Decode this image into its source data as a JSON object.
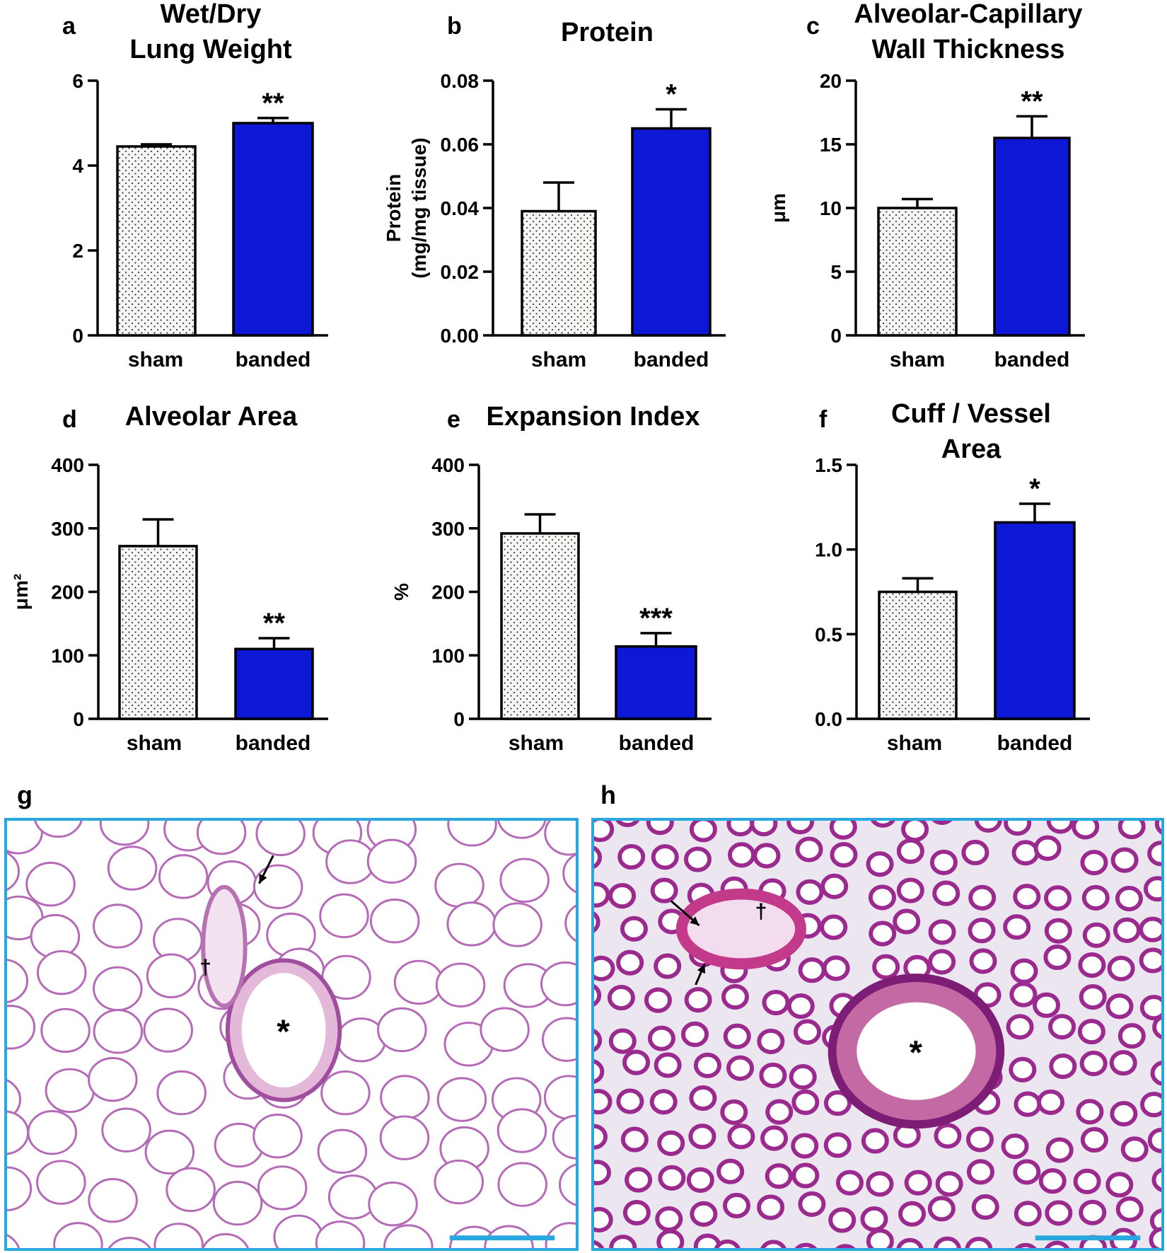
{
  "colors": {
    "banded": "#0d17d6",
    "sham_fill": "#f6f6f4",
    "frame": "#29a8e0",
    "scale_bar": "#29a8e0"
  },
  "chart_data": [
    {
      "id": "a",
      "panel_label": "a",
      "type": "bar",
      "title_lines": [
        "Wet/Dry",
        "Lung Weight"
      ],
      "ylabel_lines": [],
      "ylim": [
        0,
        6
      ],
      "yticks": [
        "0",
        "2",
        "4",
        "6"
      ],
      "ytick_values": [
        0,
        2,
        4,
        6
      ],
      "categories": [
        "sham",
        "banded"
      ],
      "values": [
        4.45,
        5.0
      ],
      "errors": [
        0.05,
        0.12
      ],
      "significance": [
        "",
        "**"
      ]
    },
    {
      "id": "b",
      "panel_label": "b",
      "type": "bar",
      "title_lines": [
        "Protein"
      ],
      "ylabel_lines": [
        "Protein",
        "(mg/mg tissue)"
      ],
      "ylim": [
        0,
        0.08
      ],
      "yticks": [
        "0.00",
        "0.02",
        "0.04",
        "0.06",
        "0.08"
      ],
      "ytick_values": [
        0,
        0.02,
        0.04,
        0.06,
        0.08
      ],
      "categories": [
        "sham",
        "banded"
      ],
      "values": [
        0.039,
        0.065
      ],
      "errors": [
        0.009,
        0.006
      ],
      "significance": [
        "",
        "*"
      ]
    },
    {
      "id": "c",
      "panel_label": "c",
      "type": "bar",
      "title_lines": [
        "Alveolar-Capillary",
        "Wall Thickness"
      ],
      "ylabel_lines": [
        "μm"
      ],
      "ylim": [
        0,
        20
      ],
      "yticks": [
        "0",
        "5",
        "10",
        "15",
        "20"
      ],
      "ytick_values": [
        0,
        5,
        10,
        15,
        20
      ],
      "categories": [
        "sham",
        "banded"
      ],
      "values": [
        10.0,
        15.5
      ],
      "errors": [
        0.7,
        1.7
      ],
      "significance": [
        "",
        "**"
      ]
    },
    {
      "id": "d",
      "panel_label": "d",
      "type": "bar",
      "title_lines": [
        "Alveolar Area"
      ],
      "ylabel_lines": [
        "μm²"
      ],
      "ylim": [
        0,
        400
      ],
      "yticks": [
        "0",
        "100",
        "200",
        "300",
        "400"
      ],
      "ytick_values": [
        0,
        100,
        200,
        300,
        400
      ],
      "categories": [
        "sham",
        "banded"
      ],
      "values": [
        272,
        110
      ],
      "errors": [
        42,
        17
      ],
      "significance": [
        "",
        "**"
      ]
    },
    {
      "id": "e",
      "panel_label": "e",
      "type": "bar",
      "title_lines": [
        "Expansion Index"
      ],
      "ylabel_lines": [
        "%"
      ],
      "ylim": [
        0,
        400
      ],
      "yticks": [
        "0",
        "100",
        "200",
        "300",
        "400"
      ],
      "ytick_values": [
        0,
        100,
        200,
        300,
        400
      ],
      "categories": [
        "sham",
        "banded"
      ],
      "values": [
        292,
        114
      ],
      "errors": [
        30,
        21
      ],
      "significance": [
        "",
        "***"
      ]
    },
    {
      "id": "f",
      "panel_label": "f",
      "type": "bar",
      "title_lines": [
        "Cuff / Vessel",
        "Area"
      ],
      "ylabel_lines": [],
      "ylim": [
        0,
        1.5
      ],
      "yticks": [
        "0.0",
        "0.5",
        "1.0",
        "1.5"
      ],
      "ytick_values": [
        0,
        0.5,
        1.0,
        1.5
      ],
      "categories": [
        "sham",
        "banded"
      ],
      "values": [
        0.75,
        1.16
      ],
      "errors": [
        0.08,
        0.11
      ],
      "significance": [
        "",
        "*"
      ]
    }
  ],
  "histology": [
    {
      "panel_label": "g",
      "lumen_mark": "*",
      "vessel_mark": "†",
      "tissue": "sparse",
      "arrows": 1
    },
    {
      "panel_label": "h",
      "lumen_mark": "*",
      "vessel_mark": "†",
      "tissue": "dense",
      "arrows": 2
    }
  ]
}
